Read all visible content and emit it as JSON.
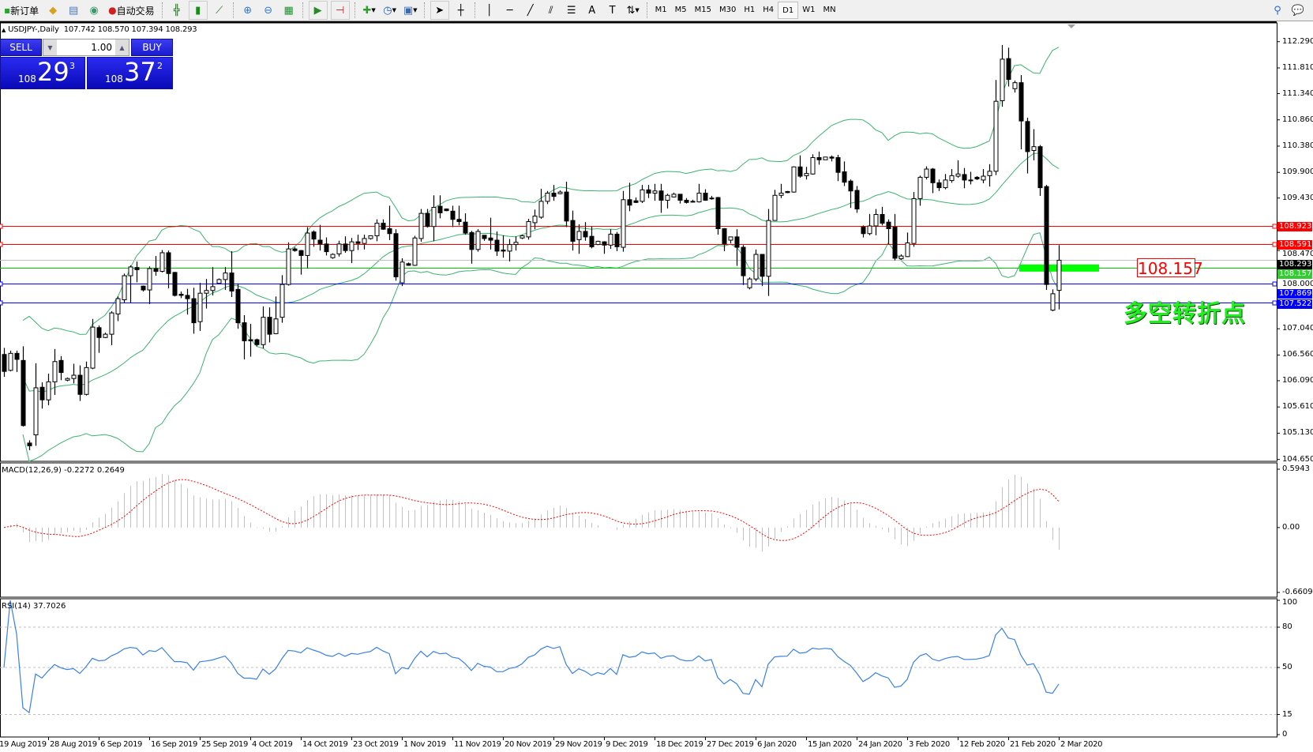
{
  "toolbar": {
    "new_order": "新订单",
    "auto_trading": "自动交易",
    "buttons": [
      {
        "icon": "new-order-icon"
      },
      {
        "icon": "history-center-icon"
      },
      {
        "icon": "market-watch-icon"
      },
      {
        "icon": "signals-icon"
      },
      {
        "icon": "auto-trading-icon"
      },
      {
        "icon": "bar-chart-icon"
      },
      {
        "icon": "candlestick-chart-icon"
      },
      {
        "icon": "line-chart-icon"
      },
      {
        "icon": "zoom-in-icon"
      },
      {
        "icon": "zoom-out-icon"
      },
      {
        "icon": "tile-windows-icon"
      },
      {
        "icon": "chart-autoscroll-icon"
      },
      {
        "icon": "chart-shift-icon"
      },
      {
        "icon": "indicators-icon"
      },
      {
        "icon": "periods-icon"
      },
      {
        "icon": "templates-icon"
      },
      {
        "icon": "cursor-icon"
      },
      {
        "icon": "crosshair-icon"
      },
      {
        "icon": "vertical-line-icon"
      },
      {
        "icon": "horizontal-line-icon"
      },
      {
        "icon": "trendline-icon"
      },
      {
        "icon": "equidistant-channel-icon"
      },
      {
        "icon": "fibonacci-icon"
      },
      {
        "icon": "text-icon"
      },
      {
        "icon": "text-label-icon"
      },
      {
        "icon": "arrows-icon"
      }
    ],
    "timeframes": [
      "M1",
      "M5",
      "M15",
      "M30",
      "H1",
      "H4",
      "D1",
      "W1",
      "MN"
    ],
    "active_timeframe": "D1",
    "right_icons": [
      "search-icon",
      "chat-icon"
    ]
  },
  "chart_header": {
    "symbol": "USDJPY-,Daily",
    "ohlc": "107.742 108.570 107.394 108.293"
  },
  "one_click_trading": {
    "sell_label": "SELL",
    "buy_label": "BUY",
    "lot": "1.00",
    "sell_price": {
      "prefix": "108",
      "big": "29",
      "sup": "3"
    },
    "buy_price": {
      "prefix": "108",
      "big": "37",
      "sup": "2"
    }
  },
  "chart_data": {
    "type": "candlestick",
    "symbol": "USDJPY",
    "timeframe": "Daily",
    "candle_fields": [
      "open",
      "high",
      "low",
      "close"
    ],
    "candles": [
      [
        106.57,
        106.69,
        106.16,
        106.26
      ],
      [
        106.28,
        106.64,
        106.26,
        106.59
      ],
      [
        106.59,
        106.64,
        106.25,
        106.48
      ],
      [
        106.46,
        106.72,
        105.25,
        105.27
      ],
      [
        104.95,
        105.0,
        104.82,
        104.9
      ],
      [
        105.1,
        106.41,
        104.9,
        105.96
      ],
      [
        105.97,
        106.06,
        105.58,
        105.74
      ],
      [
        105.74,
        106.22,
        105.64,
        106.07
      ],
      [
        106.07,
        106.67,
        105.83,
        106.44
      ],
      [
        106.46,
        106.54,
        106.1,
        106.24
      ],
      [
        106.1,
        106.15,
        106.08,
        106.13
      ],
      [
        106.13,
        106.4,
        106.04,
        106.19
      ],
      [
        106.19,
        106.37,
        105.72,
        105.84
      ],
      [
        105.84,
        106.44,
        105.82,
        106.33
      ],
      [
        106.32,
        107.22,
        106.3,
        107.07
      ],
      [
        107.06,
        107.1,
        106.6,
        106.88
      ],
      [
        106.88,
        106.97,
        106.87,
        106.94
      ],
      [
        106.94,
        107.36,
        106.74,
        107.33
      ],
      [
        107.31,
        107.63,
        107.18,
        107.59
      ],
      [
        107.57,
        108.05,
        107.52,
        108.01
      ],
      [
        108.01,
        108.2,
        107.52,
        108.17
      ],
      [
        108.16,
        108.27,
        107.89,
        108.12
      ],
      [
        107.82,
        107.83,
        107.72,
        107.75
      ],
      [
        107.75,
        108.18,
        107.49,
        108.14
      ],
      [
        108.14,
        108.37,
        108.01,
        108.09
      ],
      [
        108.09,
        108.48,
        108.07,
        108.43
      ],
      [
        108.43,
        108.47,
        107.78,
        108.05
      ],
      [
        108.07,
        108.08,
        107.63,
        107.65
      ],
      [
        107.67,
        107.72,
        107.6,
        107.65
      ],
      [
        107.65,
        107.77,
        107.3,
        107.59
      ],
      [
        107.59,
        107.79,
        106.95,
        107.15
      ],
      [
        107.17,
        107.88,
        107.0,
        107.69
      ],
      [
        107.69,
        107.95,
        107.41,
        107.74
      ],
      [
        107.74,
        108.17,
        107.65,
        107.81
      ],
      [
        107.87,
        107.96,
        107.86,
        107.94
      ],
      [
        107.94,
        108.17,
        107.75,
        108.06
      ],
      [
        108.06,
        108.46,
        107.62,
        107.73
      ],
      [
        107.76,
        107.87,
        107.04,
        107.15
      ],
      [
        107.15,
        107.29,
        106.48,
        106.82
      ],
      [
        106.84,
        107.13,
        106.53,
        106.82
      ],
      [
        106.84,
        106.86,
        106.72,
        106.75
      ],
      [
        106.75,
        107.45,
        106.68,
        107.25
      ],
      [
        107.25,
        107.43,
        106.79,
        106.94
      ],
      [
        106.95,
        107.63,
        106.94,
        107.22
      ],
      [
        107.25,
        108.02,
        107.15,
        107.85
      ],
      [
        107.85,
        108.62,
        107.83,
        108.5
      ],
      [
        108.5,
        108.53,
        108.45,
        108.47
      ],
      [
        108.47,
        108.48,
        108.03,
        108.38
      ],
      [
        108.38,
        108.9,
        108.14,
        108.79
      ],
      [
        108.81,
        108.84,
        108.54,
        108.68
      ],
      [
        108.66,
        108.94,
        108.47,
        108.59
      ],
      [
        108.59,
        108.71,
        108.38,
        108.45
      ],
      [
        108.34,
        108.42,
        108.32,
        108.4
      ],
      [
        108.41,
        108.65,
        108.36,
        108.59
      ],
      [
        108.59,
        108.73,
        108.43,
        108.47
      ],
      [
        108.47,
        108.7,
        108.24,
        108.63
      ],
      [
        108.63,
        108.76,
        108.48,
        108.6
      ],
      [
        108.6,
        108.76,
        108.49,
        108.69
      ],
      [
        108.69,
        108.74,
        108.67,
        108.74
      ],
      [
        108.74,
        109.04,
        108.64,
        108.97
      ],
      [
        108.97,
        109.04,
        108.85,
        108.86
      ],
      [
        108.87,
        109.29,
        108.66,
        108.78
      ],
      [
        108.78,
        108.86,
        107.92,
        107.99
      ],
      [
        107.88,
        108.33,
        107.82,
        108.26
      ],
      [
        108.23,
        108.25,
        108.19,
        108.2
      ],
      [
        108.2,
        108.74,
        108.19,
        108.7
      ],
      [
        108.69,
        109.23,
        108.63,
        109.15
      ],
      [
        109.15,
        109.23,
        108.89,
        108.91
      ],
      [
        108.91,
        109.48,
        108.64,
        109.26
      ],
      [
        109.28,
        109.48,
        109.06,
        109.16
      ],
      [
        109.23,
        109.24,
        109.19,
        109.2
      ],
      [
        109.19,
        109.29,
        108.9,
        109.04
      ],
      [
        109.04,
        109.29,
        108.93,
        109.0
      ],
      [
        108.99,
        109.15,
        108.76,
        108.79
      ],
      [
        108.8,
        108.83,
        108.23,
        108.49
      ],
      [
        108.49,
        108.86,
        108.45,
        108.82
      ],
      [
        108.75,
        108.75,
        108.65,
        108.69
      ],
      [
        108.7,
        109.07,
        108.49,
        108.66
      ],
      [
        108.66,
        108.82,
        108.37,
        108.46
      ],
      [
        108.48,
        108.75,
        108.34,
        108.46
      ],
      [
        108.46,
        108.68,
        108.27,
        108.58
      ],
      [
        108.58,
        108.73,
        108.47,
        108.62
      ],
      [
        108.7,
        108.76,
        108.68,
        108.74
      ],
      [
        108.72,
        109.05,
        108.67,
        109.0
      ],
      [
        108.98,
        109.22,
        108.86,
        109.1
      ],
      [
        109.08,
        109.6,
        109.05,
        109.37
      ],
      [
        109.37,
        109.56,
        109.32,
        109.52
      ],
      [
        109.52,
        109.67,
        109.38,
        109.46
      ],
      [
        109.51,
        109.57,
        109.5,
        109.54
      ],
      [
        109.54,
        109.73,
        108.9,
        109.01
      ],
      [
        109.02,
        109.2,
        108.47,
        108.64
      ],
      [
        108.67,
        108.95,
        108.41,
        108.82
      ],
      [
        108.82,
        108.99,
        108.65,
        108.72
      ],
      [
        108.73,
        108.91,
        108.51,
        108.54
      ],
      [
        108.58,
        108.65,
        108.57,
        108.64
      ],
      [
        108.63,
        108.64,
        108.41,
        108.57
      ],
      [
        108.57,
        108.86,
        108.5,
        108.77
      ],
      [
        108.77,
        108.81,
        108.46,
        108.54
      ],
      [
        108.53,
        109.56,
        108.45,
        109.4
      ],
      [
        109.4,
        109.71,
        109.19,
        109.3
      ],
      [
        109.38,
        109.44,
        109.34,
        109.35
      ],
      [
        109.37,
        109.67,
        109.34,
        109.58
      ],
      [
        109.58,
        109.67,
        109.43,
        109.52
      ],
      [
        109.52,
        109.69,
        109.38,
        109.56
      ],
      [
        109.56,
        109.69,
        109.16,
        109.39
      ],
      [
        109.39,
        109.51,
        109.24,
        109.48
      ],
      [
        109.45,
        109.53,
        109.44,
        109.5
      ],
      [
        109.5,
        109.5,
        109.33,
        109.39
      ],
      [
        109.39,
        109.43,
        109.33,
        109.35
      ],
      [
        109.37,
        109.4,
        109.35,
        109.36
      ],
      [
        109.36,
        109.69,
        109.35,
        109.52
      ],
      [
        109.52,
        109.59,
        109.38,
        109.39
      ],
      [
        109.43,
        109.47,
        109.4,
        109.43
      ],
      [
        109.44,
        109.45,
        108.76,
        108.87
      ],
      [
        108.87,
        108.88,
        108.46,
        108.59
      ],
      [
        108.66,
        108.72,
        108.6,
        108.72
      ],
      [
        108.72,
        108.86,
        108.19,
        108.53
      ],
      [
        108.53,
        108.57,
        107.84,
        108.01
      ],
      [
        107.79,
        107.98,
        107.76,
        107.95
      ],
      [
        107.95,
        108.49,
        107.91,
        108.4
      ],
      [
        108.4,
        108.4,
        107.82,
        108.0
      ],
      [
        108.0,
        109.23,
        107.64,
        109.02
      ],
      [
        109.02,
        109.58,
        109.02,
        109.48
      ],
      [
        109.48,
        109.69,
        109.43,
        109.52
      ],
      [
        109.55,
        109.56,
        109.52,
        109.53
      ],
      [
        109.54,
        110.01,
        109.53,
        110.0
      ],
      [
        110.0,
        110.21,
        109.8,
        109.83
      ],
      [
        109.84,
        110.0,
        109.77,
        109.88
      ],
      [
        109.87,
        110.23,
        109.86,
        110.17
      ],
      [
        110.17,
        110.28,
        110.04,
        110.13
      ],
      [
        110.13,
        110.18,
        110.13,
        110.18
      ],
      [
        110.18,
        110.21,
        110.1,
        110.16
      ],
      [
        110.17,
        110.22,
        109.74,
        109.9
      ],
      [
        109.91,
        110.1,
        109.65,
        109.72
      ],
      [
        109.74,
        109.77,
        109.25,
        109.56
      ],
      [
        109.57,
        109.65,
        109.16,
        109.23
      ],
      [
        108.9,
        108.93,
        108.71,
        108.78
      ],
      [
        108.78,
        109.14,
        108.75,
        108.92
      ],
      [
        108.92,
        109.23,
        108.75,
        109.13
      ],
      [
        109.13,
        109.27,
        108.93,
        108.97
      ],
      [
        108.99,
        109.04,
        108.58,
        108.87
      ],
      [
        108.9,
        109.14,
        108.29,
        108.33
      ],
      [
        108.32,
        108.4,
        108.3,
        108.37
      ],
      [
        108.36,
        108.8,
        108.35,
        108.61
      ],
      [
        108.6,
        109.54,
        108.54,
        109.42
      ],
      [
        109.42,
        109.84,
        109.29,
        109.81
      ],
      [
        109.81,
        110.01,
        109.77,
        109.96
      ],
      [
        109.96,
        109.98,
        109.52,
        109.71
      ],
      [
        109.71,
        109.77,
        109.56,
        109.62
      ],
      [
        109.62,
        109.87,
        109.59,
        109.76
      ],
      [
        109.75,
        109.96,
        109.71,
        109.84
      ],
      [
        109.83,
        110.12,
        109.8,
        109.87
      ],
      [
        109.86,
        109.98,
        109.61,
        109.76
      ],
      [
        109.76,
        109.91,
        109.68,
        109.76
      ],
      [
        109.81,
        109.83,
        109.76,
        109.78
      ],
      [
        109.76,
        109.96,
        109.7,
        109.83
      ],
      [
        109.84,
        110.05,
        109.64,
        109.92
      ],
      [
        109.92,
        111.59,
        109.85,
        111.2
      ],
      [
        111.21,
        112.23,
        111.1,
        111.97
      ],
      [
        111.98,
        112.18,
        111.47,
        111.6
      ],
      [
        111.43,
        111.58,
        111.36,
        111.54
      ],
      [
        111.54,
        111.68,
        110.32,
        110.84
      ],
      [
        110.83,
        110.9,
        109.88,
        110.28
      ],
      [
        110.3,
        110.69,
        110.12,
        110.37
      ],
      [
        110.37,
        110.4,
        109.47,
        109.62
      ],
      [
        109.64,
        109.67,
        107.75,
        107.85
      ],
      [
        107.38,
        107.76,
        107.36,
        107.68
      ],
      [
        107.742,
        108.57,
        107.394,
        108.293
      ]
    ],
    "price_axis": {
      "range": [
        104.616,
        112.633
      ],
      "ticks": [
        "112.290",
        "111.810",
        "111.340",
        "110.860",
        "110.380",
        "109.900",
        "109.430",
        "108.470",
        "108.000",
        "107.040",
        "106.560",
        "106.090",
        "105.610",
        "105.130",
        "104.650"
      ]
    },
    "x_tick_labels": [
      "19 Aug 2019",
      "28 Aug 2019",
      "6 Sep 2019",
      "16 Sep 2019",
      "25 Sep 2019",
      "4 Oct 2019",
      "14 Oct 2019",
      "23 Oct 2019",
      "1 Nov 2019",
      "11 Nov 2019",
      "20 Nov 2019",
      "29 Nov 2019",
      "9 Dec 2019",
      "18 Dec 2019",
      "27 Dec 2019",
      "6 Jan 2020",
      "15 Jan 2020",
      "24 Jan 2020",
      "3 Feb 2020",
      "12 Feb 2020",
      "21 Feb 2020",
      "2 Mar 2020"
    ],
    "bollinger": {
      "period": 20,
      "deviation": 2,
      "color": "#3cb371"
    },
    "horizontal_lines": [
      {
        "price": 108.923,
        "label": "108.923",
        "color": "#ff0000",
        "marker": true
      },
      {
        "price": 108.591,
        "label": "108.591",
        "color": "#ff0000",
        "marker": true
      },
      {
        "price": 108.293,
        "label": "108.293",
        "color": "#c0c0c0",
        "label_bg": "#000000",
        "marker": false
      },
      {
        "price": 108.157,
        "label": "108.157",
        "color": "#00cc00",
        "label_bg": "#33cc33",
        "marker": false
      },
      {
        "price": 107.869,
        "label": "107.869",
        "color": "#0000ff",
        "marker": true
      },
      {
        "price": 107.522,
        "label": "107.522",
        "color": "#0000ff",
        "marker": true
      }
    ],
    "annotation": {
      "price_label": "108.157",
      "text": "多空转折点",
      "zone_color": "#00ff00",
      "zone_price": 108.157
    },
    "macd": {
      "title": "MACD(12,26,9) -0.2272 0.2649",
      "fast": 12,
      "slow": 26,
      "signal": 9,
      "range": [
        -0.6609,
        0.5943
      ],
      "ticks": [
        "0.5943",
        "0.00",
        "-0.6609"
      ],
      "histogram_color": "#c0c0c0",
      "signal_color": "#ff0000"
    },
    "rsi": {
      "title": "RSI(14) 37.7026",
      "period": 14,
      "range": [
        0,
        100
      ],
      "levels": [
        80,
        50,
        15
      ],
      "ticks": [
        "100",
        "80",
        "50",
        "15",
        "0"
      ],
      "color": "#3a80e8"
    }
  }
}
